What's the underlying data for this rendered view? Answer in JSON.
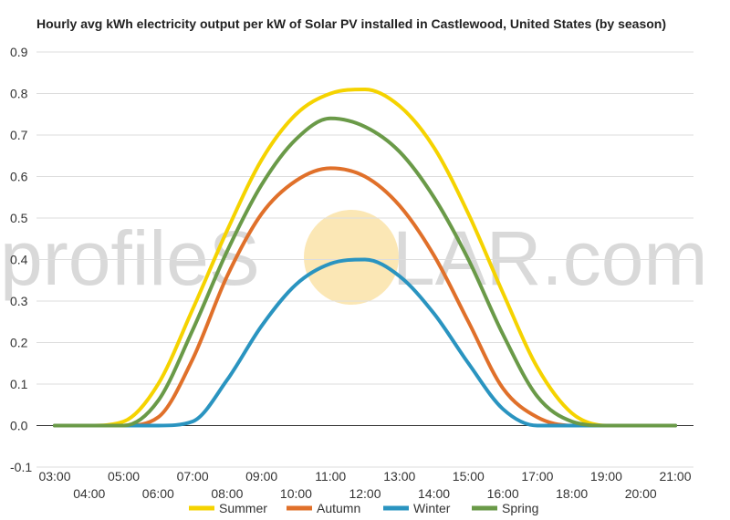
{
  "chart_data": {
    "type": "line",
    "title": "Hourly avg kWh electricity output per kW of Solar PV installed in Castlewood, United States (by season)",
    "watermark": {
      "before": "profileS",
      "after": "LAR.com",
      "sun_color": "#fbe7b5"
    },
    "x": [
      "03:00",
      "04:00",
      "05:00",
      "06:00",
      "07:00",
      "08:00",
      "09:00",
      "10:00",
      "11:00",
      "12:00",
      "13:00",
      "14:00",
      "15:00",
      "16:00",
      "17:00",
      "18:00",
      "19:00",
      "20:00",
      "21:00"
    ],
    "ylim": [
      -0.1,
      0.9
    ],
    "yticks": [
      "0.9",
      "0.8",
      "0.7",
      "0.6",
      "0.5",
      "0.4",
      "0.3",
      "0.2",
      "0.1",
      "0.0",
      "-0.1"
    ],
    "grid": true,
    "legend_position": "bottom",
    "series": [
      {
        "name": "Summer",
        "color": "#f5d300",
        "values": [
          0,
          0,
          0.01,
          0.1,
          0.28,
          0.47,
          0.64,
          0.75,
          0.8,
          0.81,
          0.77,
          0.67,
          0.51,
          0.32,
          0.14,
          0.03,
          0.0,
          0,
          0
        ]
      },
      {
        "name": "Autumn",
        "color": "#e0702a",
        "values": [
          0,
          0,
          0,
          0.02,
          0.16,
          0.36,
          0.51,
          0.59,
          0.62,
          0.6,
          0.53,
          0.41,
          0.25,
          0.09,
          0.02,
          0,
          0,
          0,
          0
        ]
      },
      {
        "name": "Winter",
        "color": "#2a94c0",
        "values": [
          0,
          0,
          0,
          0,
          0.01,
          0.11,
          0.24,
          0.34,
          0.39,
          0.4,
          0.36,
          0.27,
          0.15,
          0.04,
          0.0,
          0,
          0,
          0,
          0
        ]
      },
      {
        "name": "Spring",
        "color": "#6a9a48",
        "values": [
          0,
          0,
          0,
          0.06,
          0.23,
          0.42,
          0.58,
          0.69,
          0.74,
          0.72,
          0.66,
          0.55,
          0.4,
          0.22,
          0.07,
          0.01,
          0,
          0,
          0
        ]
      }
    ]
  }
}
